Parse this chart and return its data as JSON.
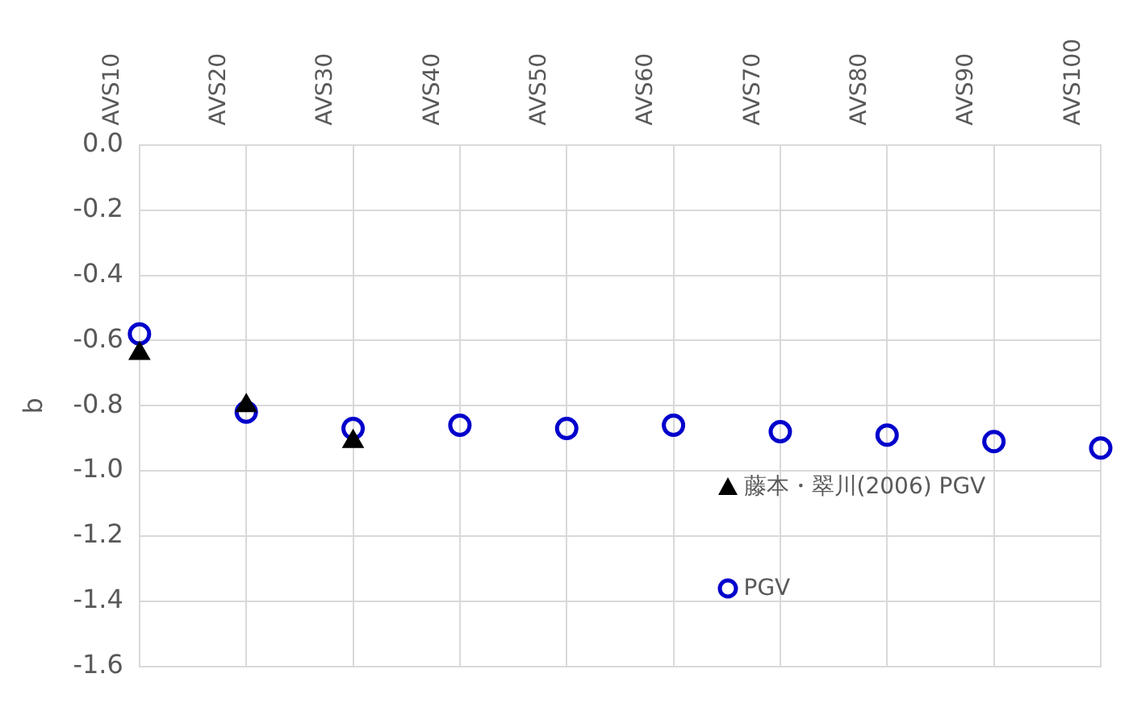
{
  "chart_data": {
    "type": "scatter",
    "ylabel": "b",
    "categories": [
      "AVS10",
      "AVS20",
      "AVS30",
      "AVS40",
      "AVS50",
      "AVS60",
      "AVS70",
      "AVS80",
      "AVS90",
      "AVS100"
    ],
    "series": [
      {
        "name": "藤本・翠川(2006) PGV",
        "color": "#000000",
        "marker": "triangle",
        "values": [
          -0.64,
          -0.8,
          -0.91,
          null,
          null,
          null,
          null,
          null,
          null,
          null
        ]
      },
      {
        "name": "PGV",
        "color": "#0000cc",
        "marker": "circle",
        "values": [
          -0.58,
          -0.82,
          -0.87,
          -0.86,
          -0.87,
          -0.86,
          -0.88,
          -0.89,
          -0.91,
          -0.93
        ]
      }
    ],
    "ylim": [
      -1.6,
      0
    ],
    "yticks": [
      {
        "value": 0,
        "label": "0.0"
      },
      -0.2,
      -0.4,
      -0.6,
      -0.8,
      {
        "value": -1,
        "label": "-1.0"
      },
      -1.2,
      -1.4,
      -1.6
    ],
    "grid": true,
    "legend": "bottom right"
  }
}
